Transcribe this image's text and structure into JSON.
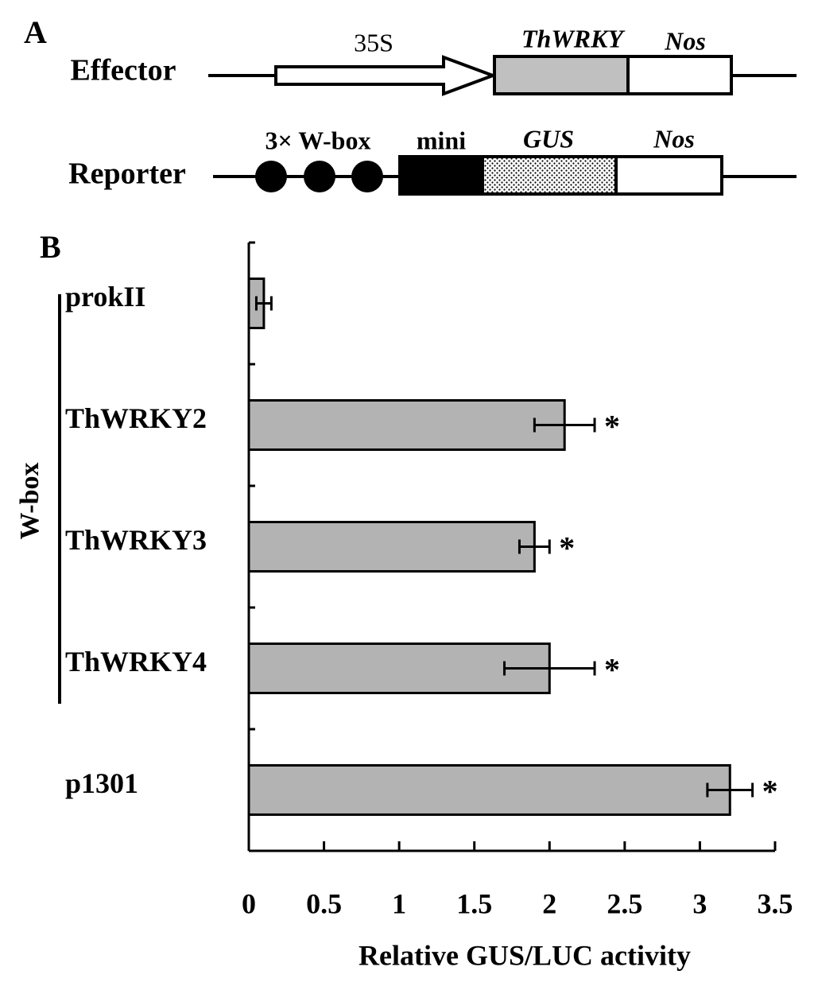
{
  "panel_a": {
    "label": "A",
    "effector": {
      "name": "Effector",
      "promoter": "35S",
      "gene": "ThWRKY",
      "terminator": "Nos"
    },
    "reporter": {
      "name": "Reporter",
      "elements": "3× W-box",
      "promoter": "mini",
      "gene": "GUS",
      "terminator": "Nos"
    }
  },
  "chart_data": {
    "type": "bar",
    "orientation": "horizontal",
    "panel_label": "B",
    "x_label": "Relative GUS/LUC activity",
    "group_label": "W-box",
    "categories": [
      "prokII",
      "ThWRKY2",
      "ThWRKY3",
      "ThWRKY4",
      "p1301"
    ],
    "values": [
      0.1,
      2.1,
      1.9,
      2.0,
      3.2
    ],
    "errors": [
      0.05,
      0.2,
      0.1,
      0.3,
      0.15
    ],
    "annotations": [
      null,
      "*",
      "*",
      "*",
      "*"
    ],
    "color": "#b3b3b3",
    "xlim": [
      0,
      3.5
    ],
    "xticks": [
      0,
      0.5,
      1,
      1.5,
      2,
      2.5,
      3,
      3.5
    ]
  }
}
